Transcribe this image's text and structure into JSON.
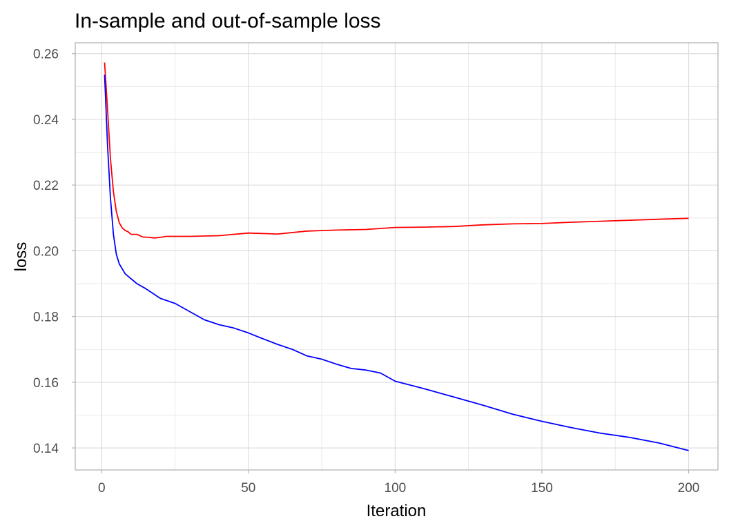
{
  "chart_data": {
    "type": "line",
    "title": "In-sample and out-of-sample loss",
    "xlabel": "Iteration",
    "ylabel": "loss",
    "xlim": [
      -9,
      210
    ],
    "ylim": [
      0.1333,
      0.2633
    ],
    "xticks": [
      0,
      50,
      100,
      150,
      200
    ],
    "xtick_labels": [
      "0",
      "50",
      "100",
      "150",
      "200"
    ],
    "yticks": [
      0.14,
      0.16,
      0.18,
      0.2,
      0.22,
      0.24,
      0.26
    ],
    "ytick_labels": [
      "0.14",
      "0.16",
      "0.18",
      "0.20",
      "0.22",
      "0.24",
      "0.26"
    ],
    "grid": true,
    "legend": "none",
    "series": [
      {
        "color": "#ff0000",
        "x": [
          1,
          2,
          3,
          4,
          5,
          6,
          7,
          8,
          9,
          10,
          12,
          14,
          16,
          18,
          20,
          22,
          30,
          40,
          50,
          60,
          70,
          80,
          90,
          100,
          110,
          120,
          130,
          140,
          150,
          160,
          170,
          180,
          190,
          200
        ],
        "y": [
          0.2573,
          0.243,
          0.228,
          0.218,
          0.212,
          0.2085,
          0.207,
          0.2062,
          0.2058,
          0.205,
          0.205,
          0.2042,
          0.2041,
          0.2039,
          0.2041,
          0.2044,
          0.2044,
          0.2046,
          0.2054,
          0.2051,
          0.206,
          0.2063,
          0.2065,
          0.2071,
          0.2072,
          0.2074,
          0.2079,
          0.2082,
          0.2083,
          0.2087,
          0.209,
          0.2093,
          0.2096,
          0.2099
        ]
      },
      {
        "color": "#0000ff",
        "x": [
          1,
          2,
          3,
          4,
          5,
          6,
          8,
          10,
          12,
          15,
          20,
          25,
          30,
          35,
          40,
          45,
          50,
          55,
          60,
          65,
          70,
          75,
          80,
          85,
          90,
          95,
          100,
          110,
          120,
          130,
          140,
          150,
          160,
          170,
          180,
          190,
          200
        ],
        "y": [
          0.2536,
          0.232,
          0.216,
          0.205,
          0.199,
          0.196,
          0.193,
          0.1915,
          0.19,
          0.1885,
          0.1855,
          0.184,
          0.1815,
          0.179,
          0.1775,
          0.1765,
          0.175,
          0.1732,
          0.1715,
          0.17,
          0.168,
          0.167,
          0.1655,
          0.1642,
          0.1637,
          0.1628,
          0.1603,
          0.158,
          0.1555,
          0.153,
          0.1503,
          0.1481,
          0.1462,
          0.1445,
          0.1432,
          0.1415,
          0.1392
        ]
      }
    ]
  }
}
